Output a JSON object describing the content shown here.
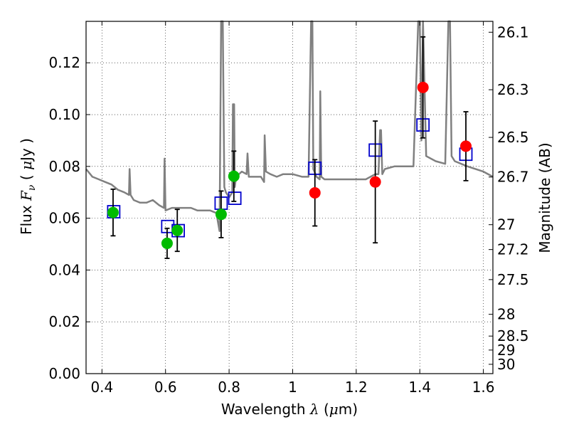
{
  "chart_data": {
    "type": "scatter",
    "title": "",
    "xlabel_parts": [
      "Wavelength",
      "λ",
      "(",
      "μ",
      "m)"
    ],
    "ylabel_parts": [
      "Flux",
      "F",
      "ν",
      "(",
      "μ",
      "Jy",
      ")"
    ],
    "ylabel_right": "Magnitude (AB)",
    "xlim": [
      0.35,
      1.63
    ],
    "ylim": [
      0.0,
      0.136
    ],
    "grid": true,
    "x_ticks": [
      0.4,
      0.6,
      0.8,
      1.0,
      1.2,
      1.4,
      1.6
    ],
    "x_tick_labels": [
      "0.4",
      "0.6",
      "0.8",
      "1",
      "1.2",
      "1.4",
      "1.6"
    ],
    "y_ticks": [
      0.0,
      0.02,
      0.04,
      0.06,
      0.08,
      0.1,
      0.12
    ],
    "y_tick_labels": [
      "0.00",
      "0.02",
      "0.04",
      "0.06",
      "0.08",
      "0.10",
      "0.12"
    ],
    "mag_ticks": [
      {
        "label": "26.1",
        "flux": 0.1318
      },
      {
        "label": "26.3",
        "flux": 0.1096
      },
      {
        "label": "26.5",
        "flux": 0.0912
      },
      {
        "label": "26.7",
        "flux": 0.0759
      },
      {
        "label": "27",
        "flux": 0.0575
      },
      {
        "label": "27.2",
        "flux": 0.0479
      },
      {
        "label": "27.5",
        "flux": 0.0363
      },
      {
        "label": "28",
        "flux": 0.0229
      },
      {
        "label": "28.5",
        "flux": 0.0145
      },
      {
        "label": "29",
        "flux": 0.0091
      },
      {
        "label": "30",
        "flux": 0.0036
      }
    ],
    "series": [
      {
        "kind": "spectrum",
        "color": "#808080",
        "x": [
          0.35,
          0.37,
          0.39,
          0.41,
          0.43,
          0.45,
          0.47,
          0.485,
          0.487,
          0.49,
          0.5,
          0.52,
          0.54,
          0.56,
          0.58,
          0.595,
          0.597,
          0.6,
          0.62,
          0.64,
          0.66,
          0.68,
          0.7,
          0.72,
          0.74,
          0.76,
          0.77,
          0.775,
          0.78,
          0.785,
          0.79,
          0.795,
          0.8,
          0.81,
          0.812,
          0.816,
          0.818,
          0.822,
          0.84,
          0.855,
          0.858,
          0.862,
          0.88,
          0.9,
          0.91,
          0.912,
          0.916,
          0.93,
          0.95,
          0.97,
          1.0,
          1.03,
          1.05,
          1.058,
          1.062,
          1.065,
          1.075,
          1.085,
          1.087,
          1.09,
          1.1,
          1.15,
          1.2,
          1.23,
          1.26,
          1.27,
          1.275,
          1.278,
          1.282,
          1.29,
          1.32,
          1.36,
          1.38,
          1.395,
          1.4,
          1.405,
          1.41,
          1.42,
          1.45,
          1.48,
          1.49,
          1.495,
          1.5,
          1.51,
          1.55,
          1.6,
          1.63
        ],
        "y": [
          0.079,
          0.076,
          0.075,
          0.074,
          0.073,
          0.071,
          0.07,
          0.069,
          0.079,
          0.069,
          0.067,
          0.066,
          0.066,
          0.067,
          0.065,
          0.064,
          0.083,
          0.063,
          0.064,
          0.064,
          0.064,
          0.064,
          0.063,
          0.063,
          0.063,
          0.062,
          0.055,
          0.136,
          0.136,
          0.072,
          0.07,
          0.069,
          0.068,
          0.07,
          0.104,
          0.104,
          0.072,
          0.076,
          0.078,
          0.077,
          0.085,
          0.076,
          0.076,
          0.076,
          0.074,
          0.092,
          0.078,
          0.077,
          0.076,
          0.077,
          0.077,
          0.076,
          0.076,
          0.136,
          0.136,
          0.079,
          0.076,
          0.075,
          0.109,
          0.076,
          0.075,
          0.075,
          0.075,
          0.075,
          0.077,
          0.077,
          0.094,
          0.094,
          0.077,
          0.079,
          0.08,
          0.08,
          0.08,
          0.136,
          0.136,
          0.09,
          0.136,
          0.084,
          0.082,
          0.081,
          0.136,
          0.136,
          0.084,
          0.082,
          0.08,
          0.078,
          0.076
        ]
      },
      {
        "kind": "model-squares",
        "color": "#0000cc",
        "x": [
          0.437,
          0.607,
          0.64,
          0.775,
          0.818,
          1.07,
          1.26,
          1.41,
          1.545
        ],
        "y": [
          0.0625,
          0.0568,
          0.0552,
          0.0658,
          0.0677,
          0.0793,
          0.0863,
          0.096,
          0.0847
        ]
      },
      {
        "kind": "green-points",
        "color": "#00bb00",
        "x": [
          0.435,
          0.605,
          0.637,
          0.775,
          0.815
        ],
        "y": [
          0.0622,
          0.0503,
          0.0553,
          0.0615,
          0.0762
        ],
        "yerr": [
          0.009,
          0.0058,
          0.0081,
          0.009,
          0.0097
        ]
      },
      {
        "kind": "red-points",
        "color": "#ff0000",
        "x": [
          1.07,
          1.26,
          1.41,
          1.545
        ],
        "y": [
          0.0698,
          0.074,
          0.1105,
          0.0878
        ],
        "yerr": [
          0.0128,
          0.0235,
          0.0195,
          0.0133
        ]
      }
    ]
  }
}
